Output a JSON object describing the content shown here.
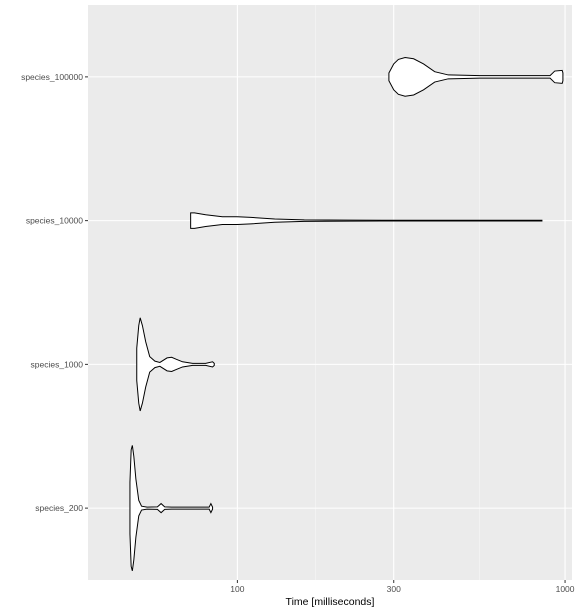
{
  "chart_data": {
    "type": "violin",
    "title": "",
    "xlabel": "Time [milliseconds]",
    "ylabel": "",
    "x_scale": "log10",
    "xlim": [
      35,
      1050
    ],
    "x_ticks": [
      100,
      300,
      1000
    ],
    "x_tick_labels": [
      "100",
      "300",
      "1000"
    ],
    "grid": true,
    "categories": [
      "species_200",
      "species_1000",
      "species_10000",
      "species_100000"
    ],
    "series": [
      {
        "category": "species_200",
        "profile": [
          [
            47,
            0.4
          ],
          [
            47.4,
            0.9
          ],
          [
            47.8,
            0.97
          ],
          [
            48.3,
            0.8
          ],
          [
            49,
            0.45
          ],
          [
            50,
            0.12
          ],
          [
            51,
            0.03
          ],
          [
            53,
            0.015
          ],
          [
            57,
            0.02
          ],
          [
            58.5,
            0.07
          ],
          [
            60,
            0.02
          ],
          [
            63,
            0.015
          ],
          [
            75,
            0.015
          ],
          [
            82,
            0.015
          ],
          [
            83,
            0.07
          ],
          [
            84,
            0.015
          ]
        ]
      },
      {
        "category": "species_1000",
        "profile": [
          [
            49.3,
            0.25
          ],
          [
            50,
            0.6
          ],
          [
            50.5,
            0.72
          ],
          [
            51.3,
            0.6
          ],
          [
            52.5,
            0.35
          ],
          [
            54,
            0.12
          ],
          [
            56,
            0.05
          ],
          [
            58,
            0.03
          ],
          [
            61,
            0.1
          ],
          [
            63,
            0.11
          ],
          [
            65,
            0.08
          ],
          [
            68,
            0.04
          ],
          [
            73,
            0.015
          ],
          [
            80,
            0.015
          ],
          [
            84,
            0.04
          ],
          [
            85,
            0.015
          ]
        ]
      },
      {
        "category": "species_10000",
        "profile": [
          [
            72,
            0.12
          ],
          [
            74,
            0.12
          ],
          [
            80,
            0.09
          ],
          [
            90,
            0.06
          ],
          [
            100,
            0.06
          ],
          [
            110,
            0.05
          ],
          [
            130,
            0.025
          ],
          [
            160,
            0.012
          ],
          [
            220,
            0.008
          ],
          [
            300,
            0.006
          ],
          [
            500,
            0.006
          ],
          [
            800,
            0.006
          ],
          [
            850,
            0.005
          ]
        ]
      },
      {
        "category": "species_100000",
        "profile": [
          [
            290,
            0.06
          ],
          [
            300,
            0.2
          ],
          [
            310,
            0.27
          ],
          [
            325,
            0.3
          ],
          [
            345,
            0.28
          ],
          [
            370,
            0.2
          ],
          [
            400,
            0.08
          ],
          [
            440,
            0.03
          ],
          [
            550,
            0.02
          ],
          [
            700,
            0.02
          ],
          [
            900,
            0.02
          ],
          [
            930,
            0.09
          ],
          [
            980,
            0.1
          ],
          [
            985,
            0.06
          ]
        ]
      }
    ]
  },
  "colors": {
    "panel_background": "#ebebeb",
    "grid_major": "#ffffff",
    "violin_fill": "#ffffff",
    "violin_outline": "#000000"
  }
}
